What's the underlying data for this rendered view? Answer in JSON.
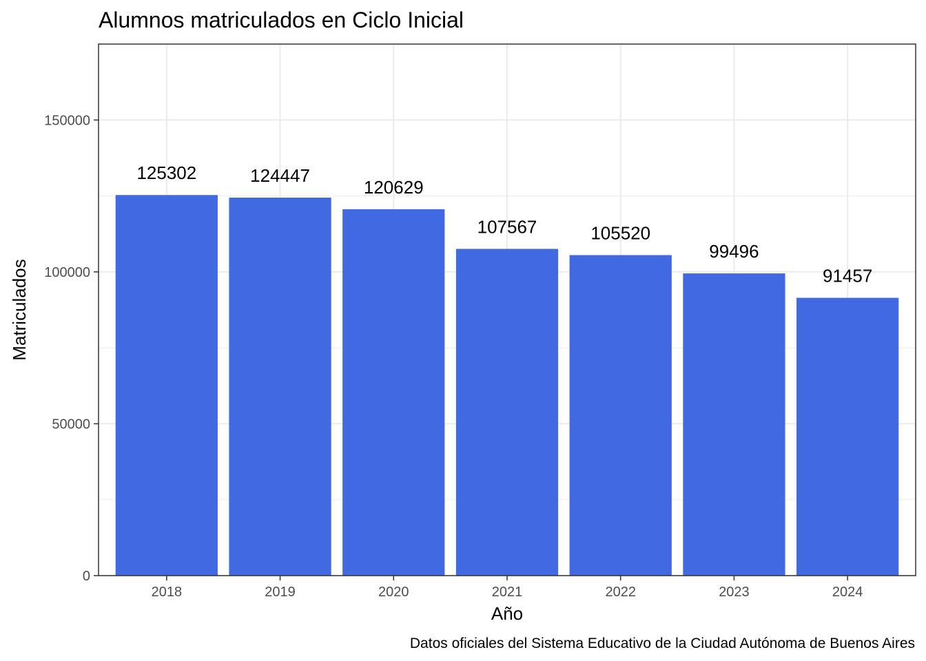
{
  "chart_data": {
    "type": "bar",
    "title": "Alumnos matriculados en Ciclo Inicial",
    "xlabel": "Año",
    "ylabel": "Matriculados",
    "caption": "Datos oficiales del Sistema Educativo de la Ciudad Autónoma de Buenos Aires",
    "categories": [
      "2018",
      "2019",
      "2020",
      "2021",
      "2022",
      "2023",
      "2024"
    ],
    "values": [
      125302,
      124447,
      120629,
      107567,
      105520,
      99496,
      91457
    ],
    "data_labels": [
      "125302",
      "124447",
      "120629",
      "107567",
      "105520",
      "99496",
      "91457"
    ],
    "ylim": [
      0,
      175000
    ],
    "y_ticks": [
      0,
      50000,
      100000,
      150000
    ],
    "y_tick_labels": [
      "0",
      "50000",
      "100000",
      "150000"
    ],
    "grid": true,
    "legend": "none",
    "colors": {
      "bar": "#4169E1",
      "grid": "#ebebeb",
      "panel_border": "#333333"
    }
  }
}
